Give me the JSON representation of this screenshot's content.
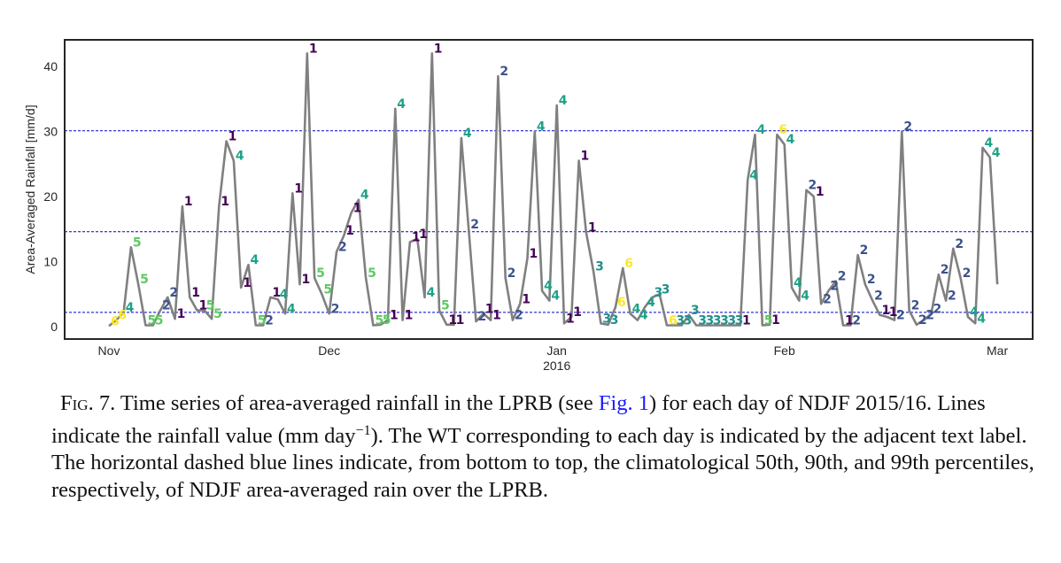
{
  "chart_data": {
    "type": "line",
    "title": "",
    "xlabel": "",
    "ylabel": "Area-Averaged Rainfall [mm/d]",
    "ylim": [
      -2,
      45
    ],
    "yticks": [
      0,
      10,
      20,
      30,
      40
    ],
    "xtick_labels": [
      {
        "label": "Nov",
        "day": 0
      },
      {
        "label": "Dec",
        "day": 30
      },
      {
        "label": "Jan",
        "day": 61,
        "sublabel": "2016"
      },
      {
        "label": "Feb",
        "day": 92
      },
      {
        "label": "Mar",
        "day": 121
      }
    ],
    "x_start": "2015-11-01",
    "n_days": 121,
    "grid": false,
    "line_color": "#808080",
    "percentile_lines": [
      {
        "name": "50th percentile",
        "value": 2.2,
        "color": "#0000cc"
      },
      {
        "name": "90th percentile",
        "value": 14.6,
        "color": "#0000cc"
      },
      {
        "name": "99th percentile",
        "value": 30.1,
        "color": "#0000cc"
      }
    ],
    "wt_colors": {
      "1": "#440154",
      "2": "#3b528b",
      "3": "#21918c",
      "4": "#1fa187",
      "5": "#5ec962",
      "6": "#fde725"
    },
    "series": [
      {
        "name": "Area-averaged rainfall",
        "values": [
          0.1,
          1.0,
          2.2,
          12.2,
          6.5,
          0.2,
          0.2,
          2.5,
          4.5,
          1.2,
          18.5,
          4.5,
          2.5,
          2.5,
          1.2,
          18.5,
          28.5,
          25.5,
          6.0,
          9.5,
          0.2,
          0.2,
          4.5,
          4.2,
          2.0,
          20.5,
          6.5,
          42.0,
          7.5,
          5.0,
          2.0,
          11.5,
          14.0,
          17.5,
          19.5,
          7.5,
          0.2,
          0.3,
          1.0,
          33.5,
          1.0,
          13.0,
          13.5,
          4.5,
          42.0,
          2.5,
          0.3,
          0.3,
          29.0,
          15.0,
          0.8,
          2.0,
          1.0,
          38.5,
          7.5,
          1.0,
          3.5,
          10.5,
          30.0,
          5.5,
          4.0,
          34.0,
          0.5,
          1.5,
          25.5,
          14.5,
          8.5,
          0.5,
          0.3,
          3.0,
          9.0,
          2.0,
          1.0,
          3.0,
          4.5,
          5.0,
          0.2,
          0.2,
          0.2,
          1.8,
          0.2,
          0.2,
          0.2,
          0.2,
          0.2,
          0.2,
          0.2,
          22.5,
          29.5,
          0.2,
          0.3,
          29.5,
          28.0,
          6.0,
          4.0,
          21.0,
          20.0,
          3.5,
          5.5,
          7.0,
          0.2,
          0.2,
          11.0,
          6.5,
          4.0,
          1.8,
          1.5,
          1.0,
          30.0,
          2.5,
          0.3,
          1.0,
          2.0,
          8.0,
          4.0,
          12.0,
          7.5,
          1.5,
          0.5,
          27.5,
          26.0,
          6.5
        ],
        "wt_labels": [
          "6",
          "6",
          "4",
          "5",
          "5",
          "5",
          "5",
          "2",
          "2",
          "1",
          "1",
          "1",
          "1",
          "5",
          "5",
          "1",
          "1",
          "4",
          "1",
          "4",
          "5",
          "2",
          "1",
          "4",
          "4",
          "1",
          "1",
          "1",
          "5",
          "5",
          "2",
          "2",
          "1",
          "1",
          "4",
          "5",
          "5",
          "5",
          "1",
          "4",
          "1",
          "1",
          "1",
          "4",
          "1",
          "5",
          "1",
          "1",
          "4",
          "2",
          "2",
          "1",
          "1",
          "2",
          "2",
          "2",
          "1",
          "1",
          "4",
          "4",
          "4",
          "4",
          "1",
          "1",
          "1",
          "1",
          "3",
          "3",
          "3",
          "6",
          "6",
          "4",
          "4",
          "4",
          "3",
          "3",
          "6",
          "3",
          "3",
          "3",
          "3",
          "3",
          "3",
          "3",
          "3",
          "3",
          "1",
          "4",
          "4",
          "5",
          "1",
          "6",
          "4",
          "4",
          "4",
          "2",
          "1",
          "2",
          "2",
          "2",
          "1",
          "2",
          "2",
          "2",
          "2",
          "1",
          "1",
          "2",
          "2",
          "2",
          "2",
          "2",
          "2",
          "2",
          "2",
          "2",
          "2",
          "4",
          "4",
          "4",
          "4"
        ]
      }
    ],
    "caption": {
      "fig_prefix": "Fig. 7.",
      "part1": " Time series of area-averaged rainfall in the LPRB (see ",
      "link": "Fig. 1",
      "part2": ") for each day of NDJF 2015/16. Lines indicate the rainfall value (mm day",
      "superscript": "−1",
      "part3": "). The WT corresponding to each day is indicated by the adjacent text label. The horizontal dashed blue lines indicate, from bottom to top, the climatological 50th, 90th, and 99th percentiles, respectively, of NDJF area-averaged rain over the LPRB."
    }
  }
}
